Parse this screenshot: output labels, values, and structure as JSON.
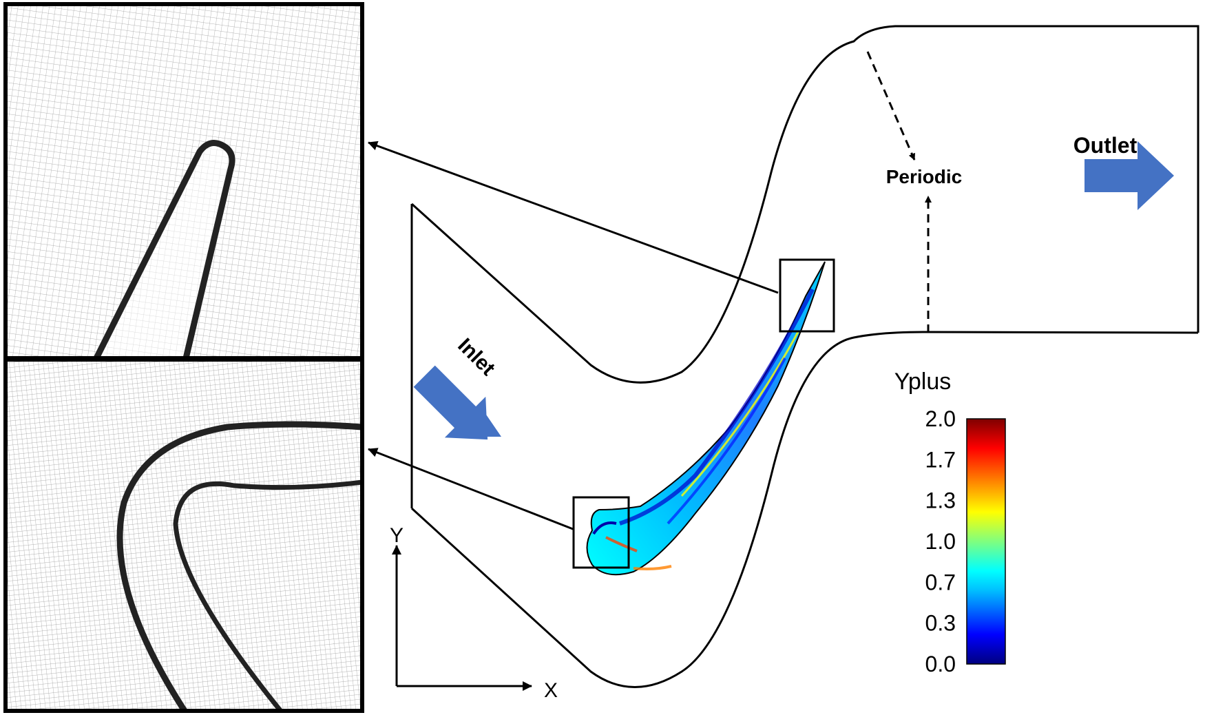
{
  "labels": {
    "inlet": "Inlet",
    "outlet": "Outlet",
    "periodic": "Periodic",
    "axis_y": "Y",
    "axis_x": "X"
  },
  "colorbar": {
    "title": "Yplus",
    "ticks": [
      "2.0",
      "1.7",
      "1.3",
      "1.0",
      "0.7",
      "0.3",
      "0.0"
    ],
    "colormap": [
      "#00007f",
      "#0000ff",
      "#00bfff",
      "#00ffff",
      "#7fff7f",
      "#ffff00",
      "#ff7f00",
      "#ff0000",
      "#7f0000"
    ]
  },
  "colors": {
    "arrow_fill": "#4472c4",
    "line": "#000000",
    "mesh_line": "#9a9a9a"
  }
}
